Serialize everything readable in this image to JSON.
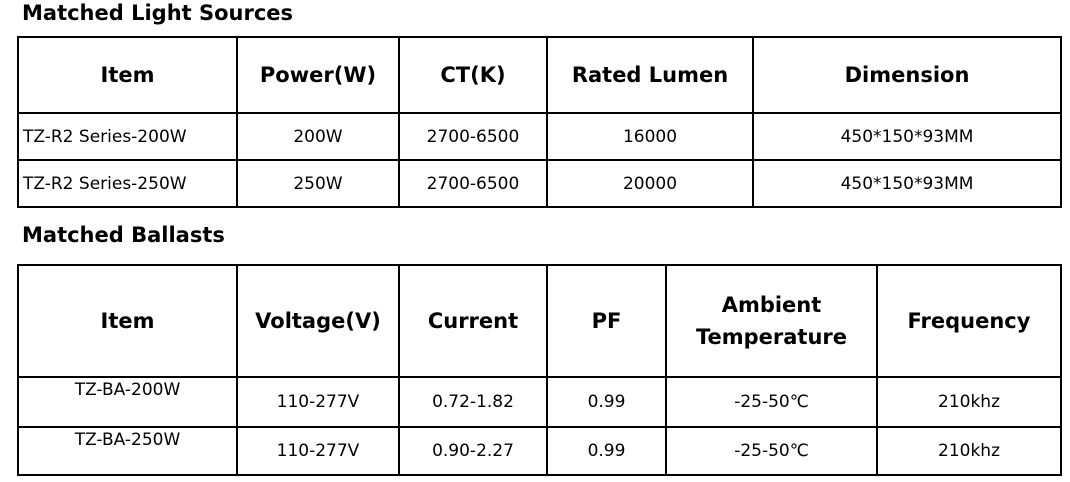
{
  "sections": [
    {
      "title": "Matched Light Sources",
      "table": {
        "header": [
          "Item",
          "Power(W)",
          "CT(K)",
          "Rated Lumen",
          "Dimension"
        ],
        "rows": [
          [
            "TZ-R2 Series-200W",
            "200W",
            "2700-6500",
            "16000",
            "450*150*93MM"
          ],
          [
            "TZ-R2 Series-250W",
            "250W",
            "2700-6500",
            "20000",
            "450*150*93MM"
          ]
        ]
      }
    },
    {
      "title": "Matched Ballasts",
      "table": {
        "header": [
          "Item",
          "Voltage(V)",
          "Current",
          "PF",
          "Ambient Temperature",
          "Frequency"
        ],
        "rows": [
          [
            "TZ-BA-200W",
            "110-277V",
            "0.72-1.82",
            "0.99",
            "-25-50℃",
            "210khz"
          ],
          [
            "TZ-BA-250W",
            "110-277V",
            "0.90-2.27",
            "0.99",
            "-25-50℃",
            "210khz"
          ]
        ]
      }
    }
  ]
}
